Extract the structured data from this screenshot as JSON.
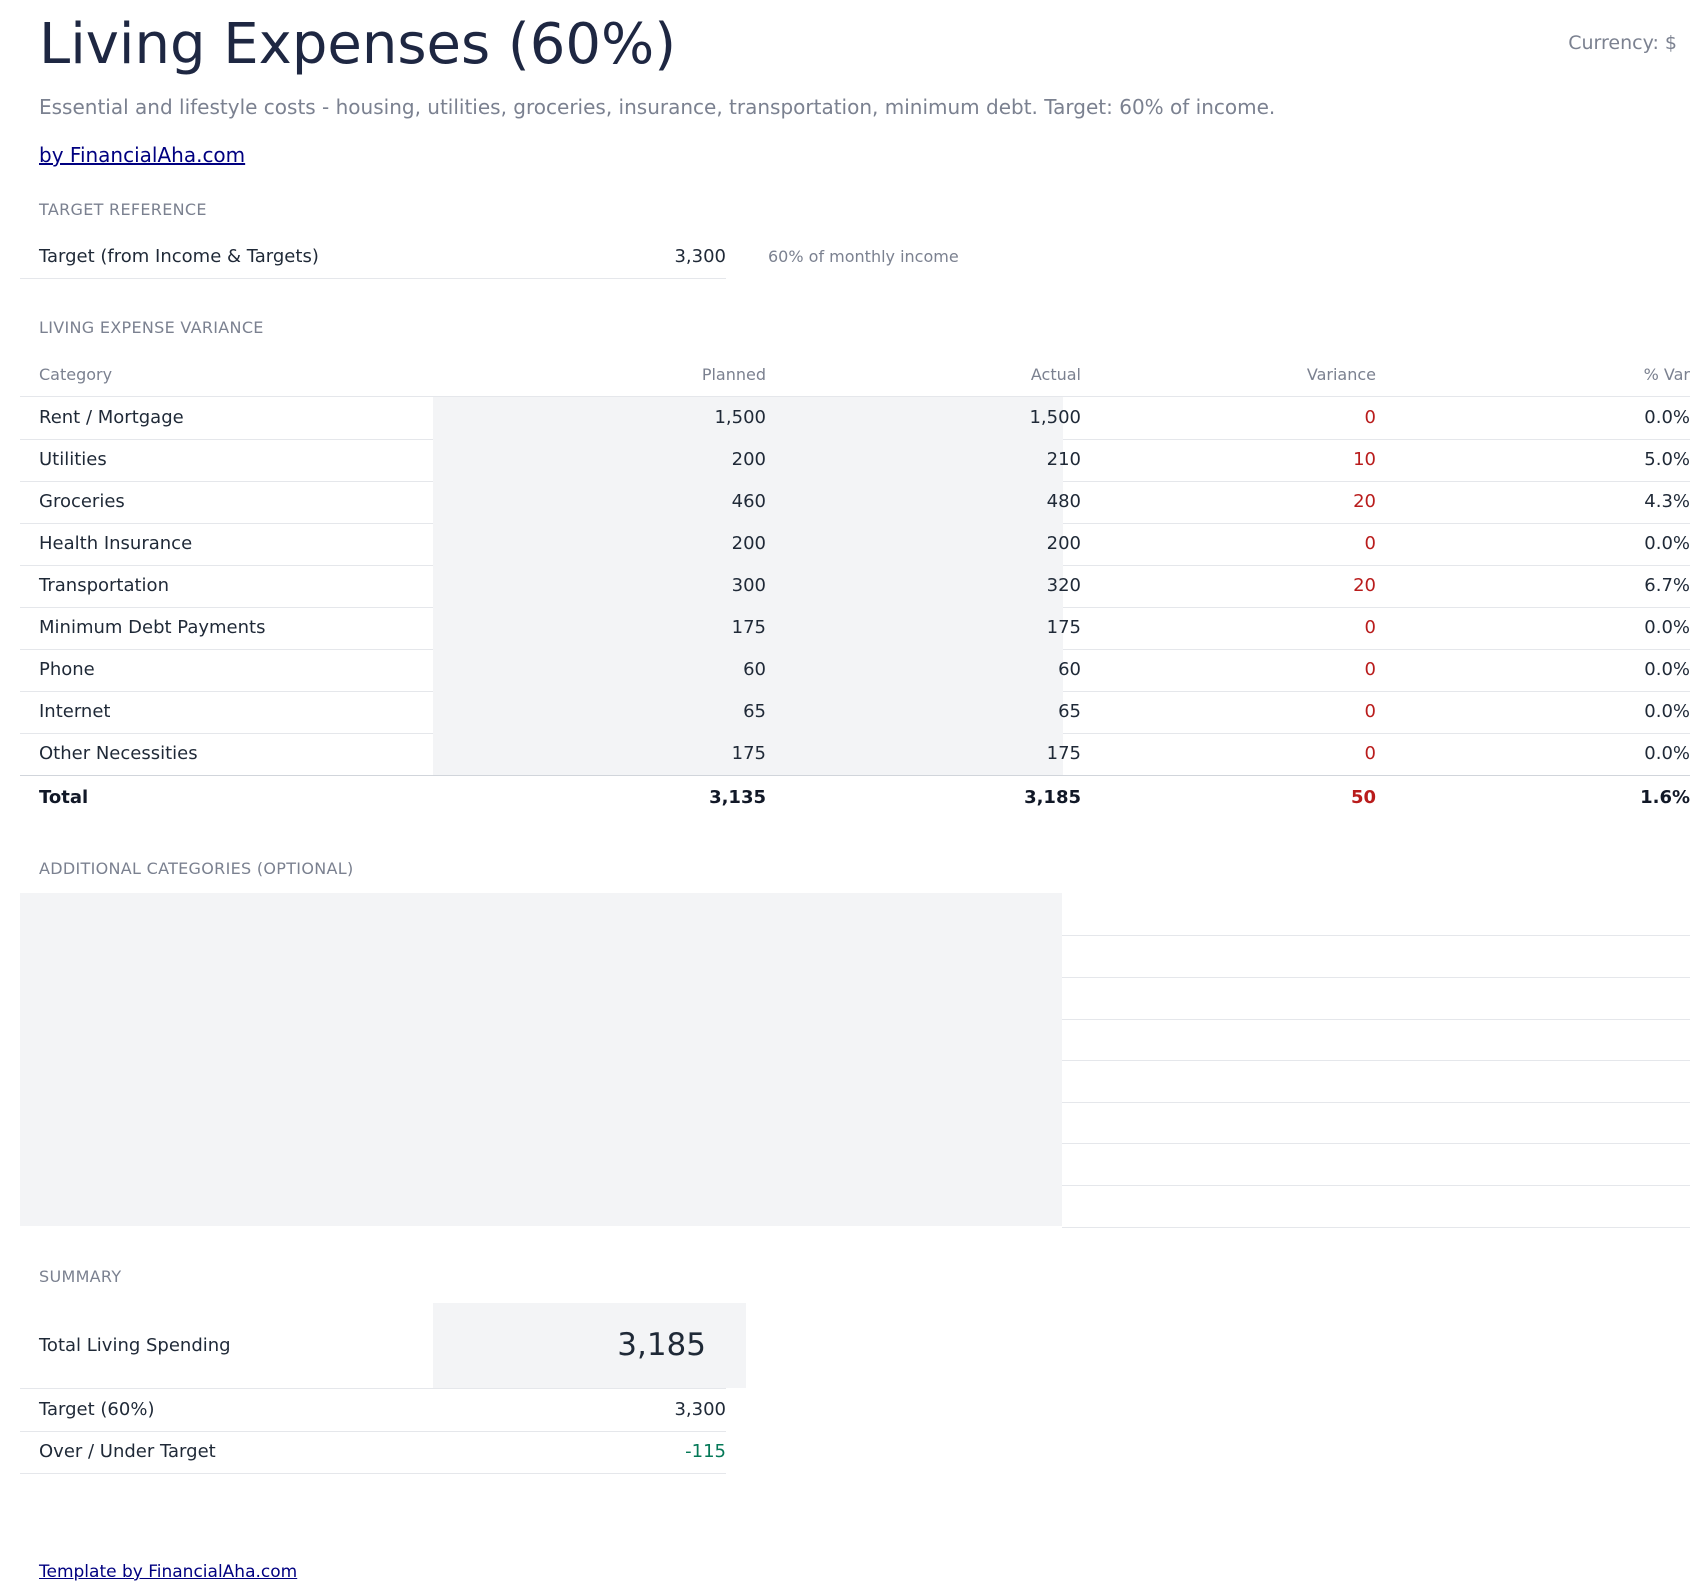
{
  "header": {
    "title": "Living Expenses (60%)",
    "currency": "Currency: $",
    "subtitle": "Essential and lifestyle costs - housing, utilities, groceries, insurance, transportation, minimum debt. Target: 60% of income.",
    "brand_link": "by FinancialAha.com"
  },
  "target_reference": {
    "section_label": "TARGET REFERENCE",
    "label": "Target (from Income & Targets)",
    "value": "3,300",
    "note": "60% of monthly income"
  },
  "variance": {
    "section_label": "LIVING EXPENSE VARIANCE",
    "columns": [
      "Category",
      "Planned",
      "Actual",
      "Variance",
      "% Var"
    ],
    "rows": [
      {
        "category": "Rent / Mortgage",
        "planned": "1,500",
        "actual": "1,500",
        "variance": "0",
        "pct": "0.0%"
      },
      {
        "category": "Utilities",
        "planned": "200",
        "actual": "210",
        "variance": "10",
        "pct": "5.0%"
      },
      {
        "category": "Groceries",
        "planned": "460",
        "actual": "480",
        "variance": "20",
        "pct": "4.3%"
      },
      {
        "category": "Health Insurance",
        "planned": "200",
        "actual": "200",
        "variance": "0",
        "pct": "0.0%"
      },
      {
        "category": "Transportation",
        "planned": "300",
        "actual": "320",
        "variance": "20",
        "pct": "6.7%"
      },
      {
        "category": "Minimum Debt Payments",
        "planned": "175",
        "actual": "175",
        "variance": "0",
        "pct": "0.0%"
      },
      {
        "category": "Phone",
        "planned": "60",
        "actual": "60",
        "variance": "0",
        "pct": "0.0%"
      },
      {
        "category": "Internet",
        "planned": "65",
        "actual": "65",
        "variance": "0",
        "pct": "0.0%"
      },
      {
        "category": "Other Necessities",
        "planned": "175",
        "actual": "175",
        "variance": "0",
        "pct": "0.0%"
      }
    ],
    "total": {
      "label": "Total",
      "planned": "3,135",
      "actual": "3,185",
      "variance": "50",
      "pct": "1.6%"
    }
  },
  "additional": {
    "section_label": "ADDITIONAL CATEGORIES (OPTIONAL)"
  },
  "summary": {
    "section_label": "SUMMARY",
    "total_label": "Total Living Spending",
    "total_value": "3,185",
    "target_label": "Target (60%)",
    "target_value": "3,300",
    "over_under_label": "Over / Under Target",
    "over_under_value": "-115"
  },
  "footer": {
    "link": "Template by FinancialAha.com"
  },
  "colors": {
    "title": "#1e2742",
    "muted": "#7b8190",
    "link": "#000080",
    "negative_variance": "#b91c1c",
    "under_target": "#047857",
    "input_shade": "#f3f4f6"
  }
}
